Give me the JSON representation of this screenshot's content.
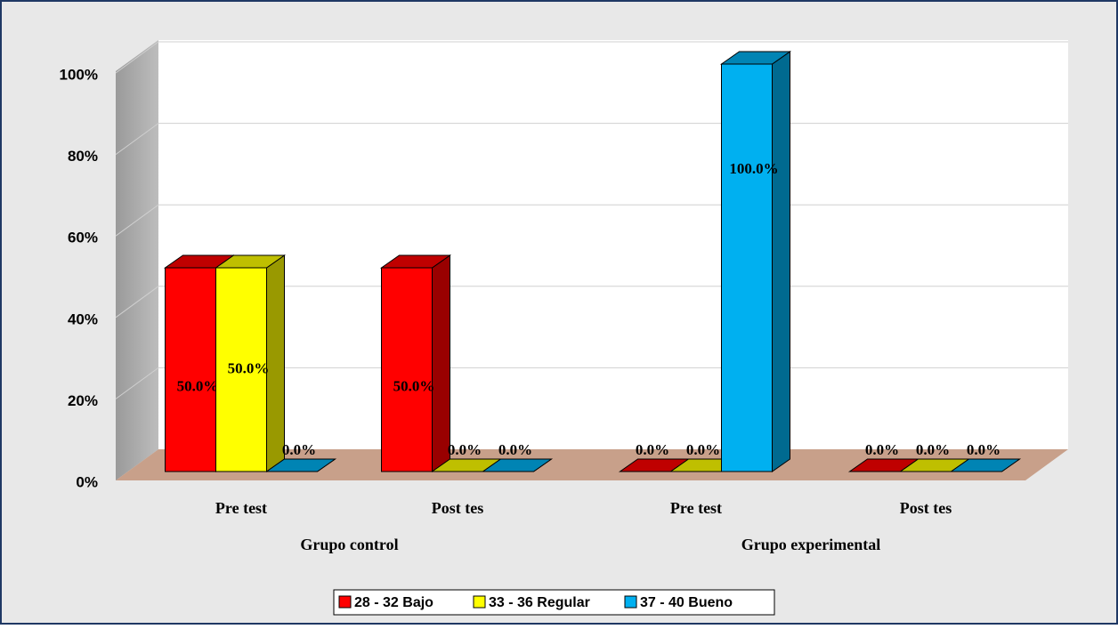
{
  "chart_data": {
    "type": "bar3d",
    "categories": [
      "Pre test",
      "Post tes",
      "Pre test",
      "Post tes"
    ],
    "groups": [
      "Grupo control",
      "Grupo experimental"
    ],
    "series": [
      {
        "name": "28 - 32 Bajo",
        "color": "#ff0000",
        "values": [
          50,
          50,
          0,
          0
        ],
        "value_labels": [
          "50.0%",
          "50.0%",
          "0.0%",
          "0.0%"
        ]
      },
      {
        "name": "33 - 36 Regular",
        "color": "#ffff00",
        "values": [
          50,
          0,
          0,
          0
        ],
        "value_labels": [
          "50.0%",
          "0.0%",
          "0.0%",
          "0.0%"
        ]
      },
      {
        "name": "37 - 40 Bueno",
        "color": "#00b0f0",
        "values": [
          0,
          0,
          100,
          0
        ],
        "value_labels": [
          "0.0%",
          "0.0%",
          "100.0%",
          "0.0%"
        ]
      }
    ],
    "ylim": [
      0,
      100
    ],
    "yticks": [
      {
        "value": 0,
        "label": "0%"
      },
      {
        "value": 20,
        "label": "20%"
      },
      {
        "value": 40,
        "label": "40%"
      },
      {
        "value": 60,
        "label": "60%"
      },
      {
        "value": 80,
        "label": "80%"
      },
      {
        "value": 100,
        "label": "100%"
      }
    ],
    "grid": true,
    "legend": "bottom"
  }
}
